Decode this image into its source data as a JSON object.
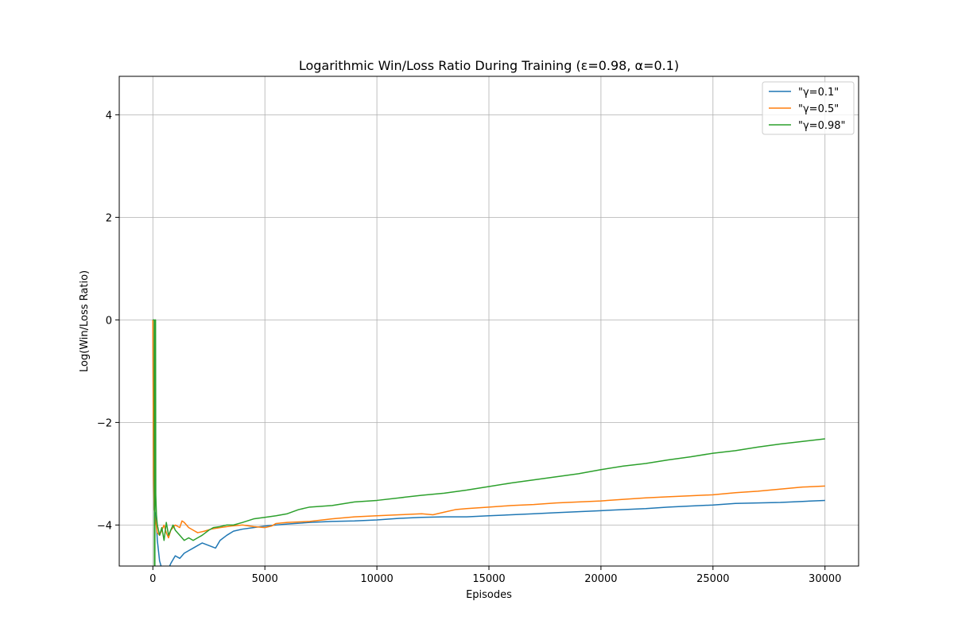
{
  "chart_data": {
    "type": "line",
    "title": "Logarithmic Win/Loss Ratio During Training (ε=0.98, α=0.1)",
    "xlabel": "Episodes",
    "ylabel": "Log(Win/Loss Ratio)",
    "xlim": [
      -1500,
      31500
    ],
    "ylim": [
      -4.8,
      4.75
    ],
    "xticks": [
      0,
      5000,
      10000,
      15000,
      20000,
      25000,
      30000
    ],
    "xtick_labels": [
      "0",
      "5000",
      "10000",
      "15000",
      "20000",
      "25000",
      "30000"
    ],
    "yticks": [
      -4,
      -2,
      0,
      2,
      4
    ],
    "ytick_labels": [
      "−4",
      "−2",
      "0",
      "2",
      "4"
    ],
    "grid": true,
    "legend_position": "top-right",
    "series": [
      {
        "name": "\"γ=0.1\"",
        "color": "#1f77b4",
        "points": [
          [
            0,
            0
          ],
          [
            30,
            -2.5
          ],
          [
            60,
            -3.7
          ],
          [
            100,
            -3.75
          ],
          [
            150,
            -3.9
          ],
          [
            200,
            -4.3
          ],
          [
            300,
            -4.7
          ],
          [
            400,
            -4.85
          ],
          [
            700,
            -4.85
          ],
          [
            800,
            -4.75
          ],
          [
            1000,
            -4.6
          ],
          [
            1200,
            -4.65
          ],
          [
            1400,
            -4.55
          ],
          [
            1600,
            -4.5
          ],
          [
            1800,
            -4.45
          ],
          [
            2000,
            -4.4
          ],
          [
            2200,
            -4.35
          ],
          [
            2500,
            -4.4
          ],
          [
            2800,
            -4.45
          ],
          [
            3000,
            -4.3
          ],
          [
            3300,
            -4.2
          ],
          [
            3600,
            -4.12
          ],
          [
            4000,
            -4.08
          ],
          [
            4500,
            -4.05
          ],
          [
            5000,
            -4.02
          ],
          [
            6000,
            -3.98
          ],
          [
            7000,
            -3.95
          ],
          [
            8000,
            -3.93
          ],
          [
            9000,
            -3.92
          ],
          [
            10000,
            -3.9
          ],
          [
            11000,
            -3.87
          ],
          [
            12000,
            -3.85
          ],
          [
            13000,
            -3.84
          ],
          [
            14000,
            -3.84
          ],
          [
            15000,
            -3.82
          ],
          [
            16000,
            -3.8
          ],
          [
            17000,
            -3.78
          ],
          [
            18000,
            -3.76
          ],
          [
            19000,
            -3.74
          ],
          [
            20000,
            -3.72
          ],
          [
            21000,
            -3.7
          ],
          [
            22000,
            -3.68
          ],
          [
            23000,
            -3.65
          ],
          [
            24000,
            -3.63
          ],
          [
            25000,
            -3.61
          ],
          [
            26000,
            -3.58
          ],
          [
            27000,
            -3.57
          ],
          [
            28000,
            -3.56
          ],
          [
            29000,
            -3.54
          ],
          [
            30000,
            -3.52
          ]
        ]
      },
      {
        "name": "\"γ=0.5\"",
        "color": "#ff7f0e",
        "points": [
          [
            0,
            0
          ],
          [
            30,
            -3.0
          ],
          [
            60,
            -3.7
          ],
          [
            100,
            -3.85
          ],
          [
            150,
            -4.0
          ],
          [
            200,
            -4.15
          ],
          [
            300,
            -4.2
          ],
          [
            400,
            -4.1
          ],
          [
            500,
            -4.0
          ],
          [
            600,
            -4.15
          ],
          [
            700,
            -4.25
          ],
          [
            800,
            -4.1
          ],
          [
            900,
            -4.05
          ],
          [
            1000,
            -4.0
          ],
          [
            1200,
            -4.05
          ],
          [
            1300,
            -3.92
          ],
          [
            1400,
            -3.95
          ],
          [
            1600,
            -4.05
          ],
          [
            1800,
            -4.1
          ],
          [
            2000,
            -4.15
          ],
          [
            2300,
            -4.12
          ],
          [
            2600,
            -4.08
          ],
          [
            3000,
            -4.05
          ],
          [
            3500,
            -4.02
          ],
          [
            4000,
            -4.0
          ],
          [
            4500,
            -4.03
          ],
          [
            5000,
            -4.05
          ],
          [
            5300,
            -4.02
          ],
          [
            5500,
            -3.97
          ],
          [
            6000,
            -3.95
          ],
          [
            7000,
            -3.93
          ],
          [
            8000,
            -3.88
          ],
          [
            9000,
            -3.84
          ],
          [
            10000,
            -3.82
          ],
          [
            11000,
            -3.8
          ],
          [
            12000,
            -3.78
          ],
          [
            12500,
            -3.8
          ],
          [
            13000,
            -3.75
          ],
          [
            13500,
            -3.7
          ],
          [
            14000,
            -3.68
          ],
          [
            15000,
            -3.65
          ],
          [
            16000,
            -3.62
          ],
          [
            17000,
            -3.6
          ],
          [
            18000,
            -3.57
          ],
          [
            19000,
            -3.55
          ],
          [
            20000,
            -3.53
          ],
          [
            21000,
            -3.5
          ],
          [
            22000,
            -3.47
          ],
          [
            23000,
            -3.45
          ],
          [
            24000,
            -3.43
          ],
          [
            25000,
            -3.41
          ],
          [
            26000,
            -3.37
          ],
          [
            27000,
            -3.34
          ],
          [
            28000,
            -3.3
          ],
          [
            29000,
            -3.26
          ],
          [
            30000,
            -3.24
          ]
        ]
      },
      {
        "name": "\"γ=0.98\"",
        "color": "#2ca02c",
        "points": [
          [
            0,
            0
          ],
          [
            60,
            0
          ],
          [
            70,
            -4.85
          ],
          [
            90,
            -4.85
          ],
          [
            100,
            0
          ],
          [
            120,
            0
          ],
          [
            130,
            -3.4
          ],
          [
            160,
            -3.8
          ],
          [
            200,
            -4.0
          ],
          [
            300,
            -4.2
          ],
          [
            400,
            -4.05
          ],
          [
            500,
            -4.3
          ],
          [
            600,
            -3.95
          ],
          [
            700,
            -4.2
          ],
          [
            800,
            -4.1
          ],
          [
            900,
            -4.0
          ],
          [
            1000,
            -4.1
          ],
          [
            1100,
            -4.15
          ],
          [
            1200,
            -4.2
          ],
          [
            1400,
            -4.3
          ],
          [
            1600,
            -4.25
          ],
          [
            1800,
            -4.3
          ],
          [
            2000,
            -4.25
          ],
          [
            2200,
            -4.2
          ],
          [
            2500,
            -4.1
          ],
          [
            2700,
            -4.05
          ],
          [
            3000,
            -4.03
          ],
          [
            3300,
            -4.0
          ],
          [
            3600,
            -4.0
          ],
          [
            4000,
            -3.95
          ],
          [
            4500,
            -3.88
          ],
          [
            5000,
            -3.85
          ],
          [
            5500,
            -3.82
          ],
          [
            6000,
            -3.78
          ],
          [
            6500,
            -3.7
          ],
          [
            7000,
            -3.65
          ],
          [
            8000,
            -3.62
          ],
          [
            9000,
            -3.55
          ],
          [
            10000,
            -3.52
          ],
          [
            11000,
            -3.47
          ],
          [
            12000,
            -3.42
          ],
          [
            13000,
            -3.38
          ],
          [
            14000,
            -3.32
          ],
          [
            15000,
            -3.25
          ],
          [
            16000,
            -3.18
          ],
          [
            17000,
            -3.12
          ],
          [
            18000,
            -3.06
          ],
          [
            19000,
            -3.0
          ],
          [
            20000,
            -2.92
          ],
          [
            21000,
            -2.85
          ],
          [
            22000,
            -2.8
          ],
          [
            23000,
            -2.73
          ],
          [
            24000,
            -2.67
          ],
          [
            25000,
            -2.6
          ],
          [
            26000,
            -2.55
          ],
          [
            27000,
            -2.48
          ],
          [
            28000,
            -2.42
          ],
          [
            29000,
            -2.37
          ],
          [
            30000,
            -2.32
          ]
        ]
      }
    ]
  }
}
